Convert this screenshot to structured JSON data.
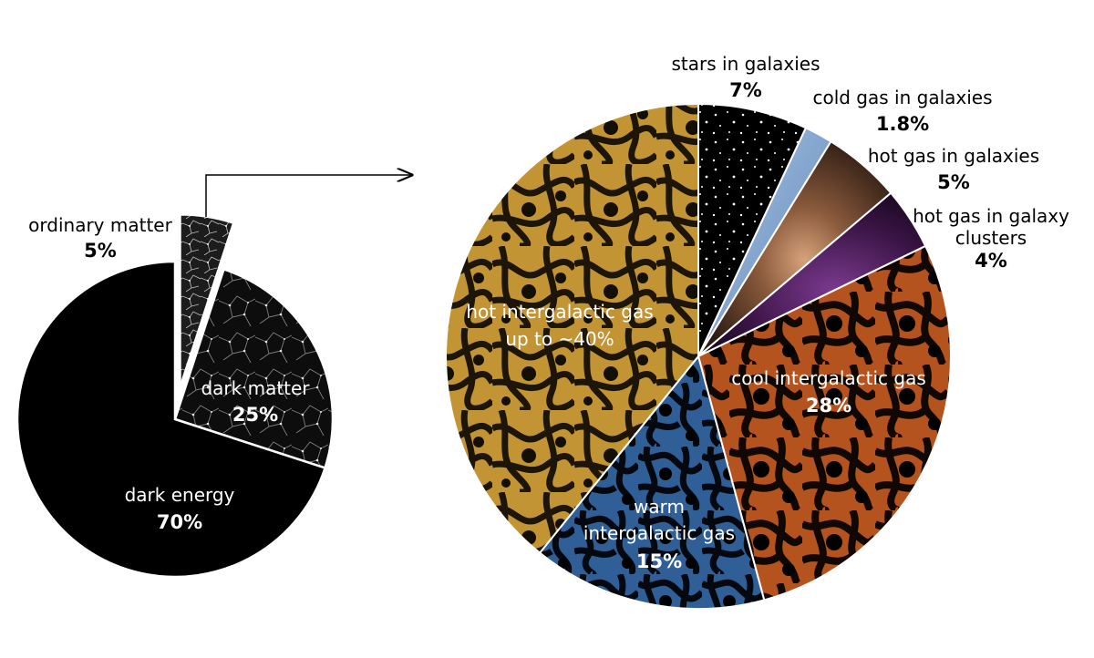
{
  "chart_data": [
    {
      "type": "pie",
      "slices": [
        {
          "label": "ordinary matter",
          "value_label": "5%",
          "value": 5,
          "color": "#1a1a1a",
          "texture": "filament-dark",
          "exploded": true
        },
        {
          "label": "dark matter",
          "value_label": "25%",
          "value": 25,
          "color": "#111111",
          "texture": "cosmic-web"
        },
        {
          "label": "dark energy",
          "value_label": "70%",
          "value": 70,
          "color": "#000000",
          "texture": "none"
        }
      ]
    },
    {
      "type": "pie",
      "slices": [
        {
          "label": "stars in galaxies",
          "value_label": "7%",
          "value": 7,
          "color": "#000000",
          "texture": "stars"
        },
        {
          "label": "cold gas in galaxies",
          "value_label": "1.8%",
          "value": 1.8,
          "color": "#8fb3da",
          "texture": "cold-gas"
        },
        {
          "label": "hot gas in galaxies",
          "value_label": "5%",
          "value": 5,
          "color": "#6b4530",
          "texture": "galaxy"
        },
        {
          "label": "hot gas in galaxy clusters",
          "value_label": "4%",
          "value": 4,
          "color": "#2e1238",
          "texture": "cluster"
        },
        {
          "label": "cool intergalactic gas",
          "value_label": "28%",
          "value": 28,
          "color": "#b5531f",
          "texture": "web"
        },
        {
          "label": "warm intergalactic gas",
          "value_label": "15%",
          "value": 15,
          "color": "#2f5f96",
          "texture": "web"
        },
        {
          "label": "hot intergalactic gas",
          "value_label": "up to ~40%",
          "value": 39.2,
          "color": "#c29434",
          "texture": "web"
        }
      ]
    }
  ],
  "labels": {
    "ordinary_matter": {
      "name": "ordinary matter",
      "pct": "5%"
    },
    "dark_matter": {
      "name": "dark matter",
      "pct": "25%"
    },
    "dark_energy": {
      "name": "dark energy",
      "pct": "70%"
    },
    "stars": {
      "name": "stars in galaxies",
      "pct": "7%"
    },
    "cold_gas": {
      "name": "cold gas in galaxies",
      "pct": "1.8%"
    },
    "hot_gas_galaxies": {
      "name": "hot gas in galaxies",
      "pct": "5%"
    },
    "hot_gas_clusters": {
      "name_1": "hot gas in galaxy",
      "name_2": "clusters",
      "pct": "4%"
    },
    "cool_igm": {
      "name": "cool intergalactic gas",
      "pct": "28%"
    },
    "warm_igm": {
      "name_1": "warm",
      "name_2": "intergalactic gas",
      "pct": "15%"
    },
    "hot_igm": {
      "name_1": "hot intergalactic gas",
      "name_2": "up to ~40%"
    }
  }
}
